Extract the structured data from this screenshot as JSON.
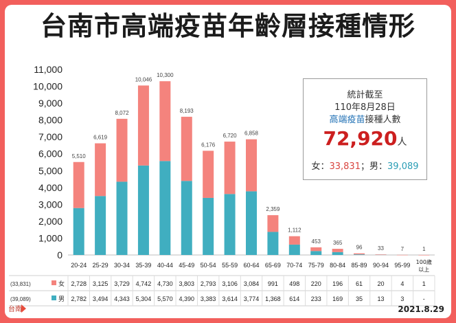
{
  "title": "台南市高端疫苗年齡層接種情形",
  "date": "2021.8.29",
  "info": {
    "line1": "統計截至",
    "line2": "110年8月28日",
    "line3_highlight": "高端疫苗",
    "line3_rest": "接種人數",
    "total": "72,920",
    "total_unit": "人",
    "female_label": "女：",
    "female_total": "33,831",
    "sep": "；",
    "male_label": "男：",
    "male_total": "39,089"
  },
  "table": {
    "female_row_total": "(33,831)",
    "male_row_total": "(39,089)",
    "female_label": "女",
    "male_label": "男"
  },
  "colors": {
    "female": "#f4837d",
    "male": "#40aec0",
    "border": "#f25f5c"
  },
  "chart_data": {
    "type": "bar",
    "stacked": true,
    "categories": [
      "20-24",
      "25-29",
      "30-34",
      "35-39",
      "40-44",
      "45-49",
      "50-54",
      "55-59",
      "60-64",
      "65-69",
      "70-74",
      "75-79",
      "80-84",
      "85-89",
      "90-94",
      "95-99",
      "100歲以上"
    ],
    "series": [
      {
        "name": "男",
        "values": [
          2782,
          3494,
          4343,
          5304,
          5570,
          4390,
          3383,
          3614,
          3774,
          1368,
          614,
          233,
          169,
          35,
          13,
          3,
          0
        ],
        "labels": [
          "2,782",
          "3,494",
          "4,343",
          "5,304",
          "5,570",
          "4,390",
          "3,383",
          "3,614",
          "3,774",
          "1,368",
          "614",
          "233",
          "169",
          "35",
          "13",
          "3",
          "-"
        ]
      },
      {
        "name": "女",
        "values": [
          2728,
          3125,
          3729,
          4742,
          4730,
          3803,
          2793,
          3106,
          3084,
          991,
          498,
          220,
          196,
          61,
          20,
          4,
          1
        ],
        "labels": [
          "2,728",
          "3,125",
          "3,729",
          "4,742",
          "4,730",
          "3,803",
          "2,793",
          "3,106",
          "3,084",
          "991",
          "498",
          "220",
          "196",
          "61",
          "20",
          "4",
          "1"
        ]
      }
    ],
    "totals": [
      5510,
      6619,
      8072,
      10046,
      10300,
      8193,
      6176,
      6720,
      6858,
      2359,
      1112,
      453,
      365,
      96,
      33,
      7,
      1
    ],
    "total_labels": [
      "5,510",
      "6,619",
      "8,072",
      "10,046",
      "10,300",
      "8,193",
      "6,176",
      "6,720",
      "6,858",
      "2,359",
      "1,112",
      "453",
      "365",
      "96",
      "33",
      "7",
      "1"
    ],
    "ylim": [
      0,
      11000
    ],
    "yticks": [
      0,
      1000,
      2000,
      3000,
      4000,
      5000,
      6000,
      7000,
      8000,
      9000,
      10000,
      11000
    ],
    "ytick_labels": [
      "0",
      "1,000",
      "2,000",
      "3,000",
      "4,000",
      "5,000",
      "6,000",
      "7,000",
      "8,000",
      "9,000",
      "10,000",
      "11,000"
    ],
    "grid": false
  }
}
